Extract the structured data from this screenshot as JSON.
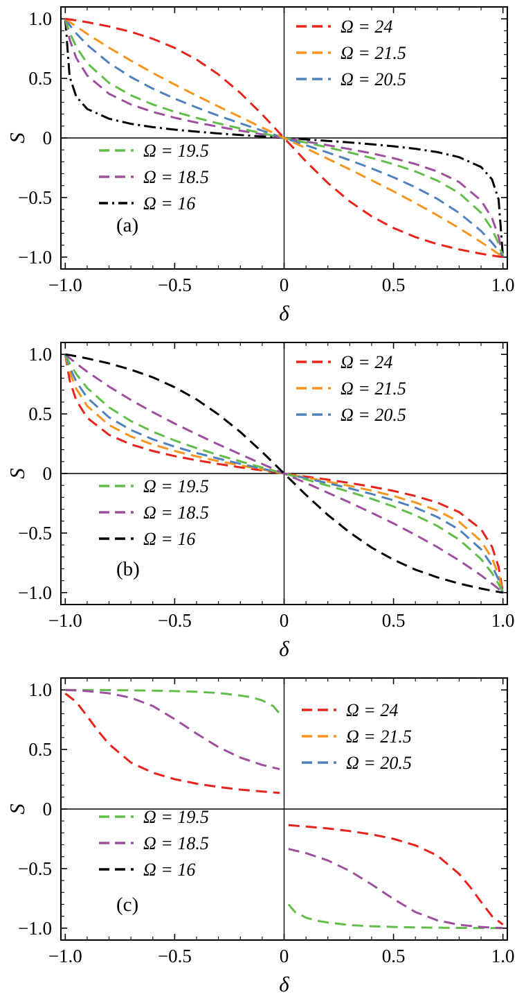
{
  "colors": {
    "red": "#e8231c",
    "orange": "#f7941d",
    "blue": "#4f81bd",
    "green": "#62bd4a",
    "purple": "#9d4f9e",
    "black": "#000000",
    "frame": "#000000"
  },
  "axis": {
    "xlabel": "δ",
    "ylabel": "S",
    "xlim": [
      -1.02,
      1.02
    ],
    "ylim": [
      -1.1,
      1.1
    ],
    "xticks": [
      -1,
      -0.5,
      0,
      0.5,
      1
    ],
    "yticks": [
      -1,
      -0.5,
      0,
      0.5,
      1
    ],
    "xtick_labels": [
      "−1.0",
      "−0.5",
      "0",
      "0.5",
      "1.0"
    ],
    "ytick_labels": [
      "−1.0",
      "−0.5",
      "0",
      "0.5",
      "1.0"
    ],
    "minor_step": 0.1
  },
  "chart_data": [
    {
      "type": "line",
      "panel_label": "(a)",
      "xlabel": "δ",
      "ylabel": "S",
      "x": [
        -1,
        -0.98,
        -0.95,
        -0.9,
        -0.8,
        -0.7,
        -0.6,
        -0.5,
        -0.4,
        -0.3,
        -0.2,
        -0.1,
        0,
        0.1,
        0.2,
        0.3,
        0.4,
        0.5,
        0.6,
        0.7,
        0.8,
        0.9,
        0.95,
        0.98,
        1
      ],
      "series": [
        {
          "name": "Ω = 16",
          "color": "black",
          "dash": "dashdot",
          "values": [
            1,
            0.515,
            0.348,
            0.244,
            0.161,
            0.119,
            0.091,
            0.07,
            0.053,
            0.038,
            0.025,
            0.012,
            0,
            -0.012,
            -0.025,
            -0.038,
            -0.053,
            -0.07,
            -0.091,
            -0.119,
            -0.161,
            -0.244,
            -0.348,
            -0.515,
            -1
          ]
        },
        {
          "name": "Ω = 18.5",
          "color": "purple",
          "dash": "dashed",
          "values": [
            1,
            0.827,
            0.672,
            0.525,
            0.37,
            0.281,
            0.219,
            0.17,
            0.129,
            0.094,
            0.061,
            0.03,
            0,
            -0.03,
            -0.061,
            -0.094,
            -0.129,
            -0.17,
            -0.219,
            -0.281,
            -0.37,
            -0.525,
            -0.672,
            -0.827,
            -1
          ]
        },
        {
          "name": "Ω = 19.5",
          "color": "green",
          "dash": "dashed",
          "values": [
            1,
            0.887,
            0.765,
            0.628,
            0.462,
            0.358,
            0.281,
            0.22,
            0.168,
            0.122,
            0.08,
            0.039,
            0,
            -0.039,
            -0.08,
            -0.122,
            -0.168,
            -0.22,
            -0.281,
            -0.358,
            -0.462,
            -0.628,
            -0.765,
            -0.887,
            -1
          ]
        },
        {
          "name": "Ω = 20.5",
          "color": "blue",
          "dash": "dashed",
          "values": [
            1,
            0.948,
            0.879,
            0.781,
            0.629,
            0.511,
            0.414,
            0.33,
            0.256,
            0.187,
            0.123,
            0.061,
            0,
            -0.061,
            -0.123,
            -0.187,
            -0.256,
            -0.33,
            -0.414,
            -0.511,
            -0.629,
            -0.781,
            -0.879,
            -0.948,
            -1
          ]
        },
        {
          "name": "Ω = 21.5",
          "color": "orange",
          "dash": "dashed",
          "values": [
            1,
            0.974,
            0.936,
            0.874,
            0.757,
            0.649,
            0.546,
            0.449,
            0.355,
            0.264,
            0.175,
            0.087,
            0,
            -0.087,
            -0.175,
            -0.264,
            -0.355,
            -0.449,
            -0.546,
            -0.649,
            -0.757,
            -0.874,
            -0.936,
            -0.974,
            -1
          ]
        },
        {
          "name": "Ω = 24",
          "color": "red",
          "dash": "dashed",
          "values": [
            1,
            0.995,
            0.987,
            0.972,
            0.936,
            0.891,
            0.832,
            0.756,
            0.658,
            0.533,
            0.378,
            0.197,
            0,
            -0.197,
            -0.378,
            -0.533,
            -0.658,
            -0.756,
            -0.832,
            -0.891,
            -0.936,
            -0.972,
            -0.987,
            -0.995,
            -1
          ]
        }
      ],
      "legend_upper": [
        {
          "label": "Ω = 24",
          "color": "red",
          "dash": "dashed"
        },
        {
          "label": "Ω = 21.5",
          "color": "orange",
          "dash": "dashed"
        },
        {
          "label": "Ω = 20.5",
          "color": "blue",
          "dash": "dashed"
        }
      ],
      "legend_lower": [
        {
          "label": "Ω = 19.5",
          "color": "green",
          "dash": "dashed"
        },
        {
          "label": "Ω = 18.5",
          "color": "purple",
          "dash": "dashed"
        },
        {
          "label": "Ω = 16",
          "color": "black",
          "dash": "dashdot"
        }
      ]
    },
    {
      "type": "line",
      "panel_label": "(b)",
      "xlabel": "δ",
      "ylabel": "S",
      "x": [
        -1,
        -0.98,
        -0.95,
        -0.9,
        -0.8,
        -0.7,
        -0.6,
        -0.5,
        -0.4,
        -0.3,
        -0.2,
        -0.1,
        0,
        0.1,
        0.2,
        0.3,
        0.4,
        0.5,
        0.6,
        0.7,
        0.8,
        0.9,
        0.95,
        0.98,
        1
      ],
      "series": [
        {
          "name": "Ω = 24",
          "color": "red",
          "dash": "dashed",
          "values": [
            1,
            0.784,
            0.615,
            0.468,
            0.324,
            0.244,
            0.189,
            0.146,
            0.111,
            0.08,
            0.052,
            0.026,
            0,
            -0.026,
            -0.052,
            -0.08,
            -0.111,
            -0.146,
            -0.189,
            -0.244,
            -0.324,
            -0.468,
            -0.615,
            -0.784,
            -1
          ]
        },
        {
          "name": "Ω = 21.5",
          "color": "orange",
          "dash": "dashed",
          "values": [
            1,
            0.854,
            0.712,
            0.567,
            0.406,
            0.311,
            0.243,
            0.189,
            0.144,
            0.104,
            0.068,
            0.034,
            0,
            -0.034,
            -0.068,
            -0.104,
            -0.144,
            -0.189,
            -0.243,
            -0.311,
            -0.406,
            -0.567,
            -0.712,
            -0.854,
            -1
          ]
        },
        {
          "name": "Ω = 20.5",
          "color": "blue",
          "dash": "dashed",
          "values": [
            1,
            0.892,
            0.773,
            0.637,
            0.471,
            0.365,
            0.287,
            0.225,
            0.172,
            0.125,
            0.081,
            0.04,
            0,
            -0.04,
            -0.081,
            -0.125,
            -0.172,
            -0.225,
            -0.287,
            -0.365,
            -0.471,
            -0.637,
            -0.773,
            -0.892,
            -1
          ]
        },
        {
          "name": "Ω = 19.5",
          "color": "green",
          "dash": "dashed",
          "values": [
            1,
            0.927,
            0.836,
            0.718,
            0.555,
            0.44,
            0.351,
            0.277,
            0.213,
            0.155,
            0.102,
            0.05,
            0,
            -0.05,
            -0.102,
            -0.155,
            -0.213,
            -0.277,
            -0.351,
            -0.44,
            -0.555,
            -0.718,
            -0.836,
            -0.927,
            -1
          ]
        },
        {
          "name": "Ω = 18.5",
          "color": "purple",
          "dash": "dashed",
          "values": [
            1,
            0.969,
            0.925,
            0.855,
            0.73,
            0.617,
            0.515,
            0.419,
            0.33,
            0.244,
            0.161,
            0.08,
            0,
            -0.08,
            -0.161,
            -0.244,
            -0.33,
            -0.419,
            -0.515,
            -0.617,
            -0.73,
            -0.855,
            -0.925,
            -0.969,
            -1
          ]
        },
        {
          "name": "Ω = 16",
          "color": "black",
          "dash": "dashed",
          "values": [
            1,
            0.994,
            0.984,
            0.966,
            0.924,
            0.872,
            0.807,
            0.724,
            0.622,
            0.496,
            0.348,
            0.18,
            0,
            -0.18,
            -0.348,
            -0.496,
            -0.622,
            -0.724,
            -0.807,
            -0.872,
            -0.924,
            -0.966,
            -0.984,
            -0.994,
            -1
          ]
        }
      ],
      "legend_upper": [
        {
          "label": "Ω = 24",
          "color": "red",
          "dash": "dashed"
        },
        {
          "label": "Ω = 21.5",
          "color": "orange",
          "dash": "dashed"
        },
        {
          "label": "Ω = 20.5",
          "color": "blue",
          "dash": "dashed"
        }
      ],
      "legend_lower": [
        {
          "label": "Ω = 19.5",
          "color": "green",
          "dash": "dashed"
        },
        {
          "label": "Ω = 18.5",
          "color": "purple",
          "dash": "dashed"
        },
        {
          "label": "Ω = 16",
          "color": "black",
          "dash": "dashed"
        }
      ]
    },
    {
      "type": "line",
      "panel_label": "(c)",
      "xlabel": "δ",
      "ylabel": "S",
      "series": [
        {
          "name": "Ω = 19.5",
          "color": "green",
          "dash": "dashed",
          "segments": [
            [
              [
                -1,
                1
              ],
              [
                -0.8,
                0.998
              ],
              [
                -0.6,
                0.994
              ],
              [
                -0.5,
                0.99
              ],
              [
                -0.4,
                0.984
              ],
              [
                -0.3,
                0.974
              ],
              [
                -0.2,
                0.953
              ],
              [
                -0.15,
                0.938
              ],
              [
                -0.1,
                0.912
              ],
              [
                -0.05,
                0.865
              ],
              [
                -0.02,
                0.8
              ]
            ],
            [
              [
                0.02,
                -0.8
              ],
              [
                0.05,
                -0.865
              ],
              [
                0.1,
                -0.912
              ],
              [
                0.15,
                -0.938
              ],
              [
                0.2,
                -0.953
              ],
              [
                0.3,
                -0.974
              ],
              [
                0.4,
                -0.984
              ],
              [
                0.5,
                -0.99
              ],
              [
                0.6,
                -0.994
              ],
              [
                0.8,
                -0.998
              ],
              [
                1,
                -1
              ]
            ]
          ]
        },
        {
          "name": "Ω = 18.5",
          "color": "purple",
          "dash": "dashed",
          "segments": [
            [
              [
                -1,
                1
              ],
              [
                -0.9,
                0.99
              ],
              [
                -0.8,
                0.972
              ],
              [
                -0.7,
                0.934
              ],
              [
                -0.6,
                0.865
              ],
              [
                -0.5,
                0.755
              ],
              [
                -0.4,
                0.633
              ],
              [
                -0.3,
                0.52
              ],
              [
                -0.2,
                0.432
              ],
              [
                -0.1,
                0.37
              ],
              [
                -0.02,
                0.335
              ]
            ],
            [
              [
                0.02,
                -0.335
              ],
              [
                0.1,
                -0.37
              ],
              [
                0.2,
                -0.432
              ],
              [
                0.3,
                -0.52
              ],
              [
                0.4,
                -0.633
              ],
              [
                0.5,
                -0.755
              ],
              [
                0.6,
                -0.865
              ],
              [
                0.7,
                -0.934
              ],
              [
                0.8,
                -0.972
              ],
              [
                0.9,
                -0.99
              ],
              [
                1,
                -1
              ]
            ]
          ]
        },
        {
          "name": "Ω = 24",
          "color": "red",
          "dash": "dashed",
          "segments": [
            [
              [
                -1,
                0.97
              ],
              [
                -0.95,
                0.9
              ],
              [
                -0.9,
                0.78
              ],
              [
                -0.85,
                0.655
              ],
              [
                -0.8,
                0.545
              ],
              [
                -0.7,
                0.39
              ],
              [
                -0.6,
                0.305
              ],
              [
                -0.5,
                0.25
              ],
              [
                -0.4,
                0.213
              ],
              [
                -0.3,
                0.185
              ],
              [
                -0.2,
                0.163
              ],
              [
                -0.1,
                0.147
              ],
              [
                -0.02,
                0.135
              ]
            ],
            [
              [
                0.02,
                -0.135
              ],
              [
                0.1,
                -0.147
              ],
              [
                0.2,
                -0.163
              ],
              [
                0.3,
                -0.185
              ],
              [
                0.4,
                -0.213
              ],
              [
                0.5,
                -0.25
              ],
              [
                0.6,
                -0.305
              ],
              [
                0.7,
                -0.39
              ],
              [
                0.8,
                -0.545
              ],
              [
                0.85,
                -0.655
              ],
              [
                0.9,
                -0.78
              ],
              [
                0.95,
                -0.9
              ],
              [
                1,
                -0.97
              ]
            ]
          ]
        }
      ],
      "legend_upper": [
        {
          "label": "Ω = 24",
          "color": "red",
          "dash": "dashed"
        },
        {
          "label": "Ω = 21.5",
          "color": "orange",
          "dash": "dashed"
        },
        {
          "label": "Ω = 20.5",
          "color": "blue",
          "dash": "dashed"
        }
      ],
      "legend_lower": [
        {
          "label": "Ω = 19.5",
          "color": "green",
          "dash": "dashed"
        },
        {
          "label": "Ω = 18.5",
          "color": "purple",
          "dash": "dashed"
        },
        {
          "label": "Ω = 16",
          "color": "black",
          "dash": "dashed"
        }
      ]
    }
  ]
}
